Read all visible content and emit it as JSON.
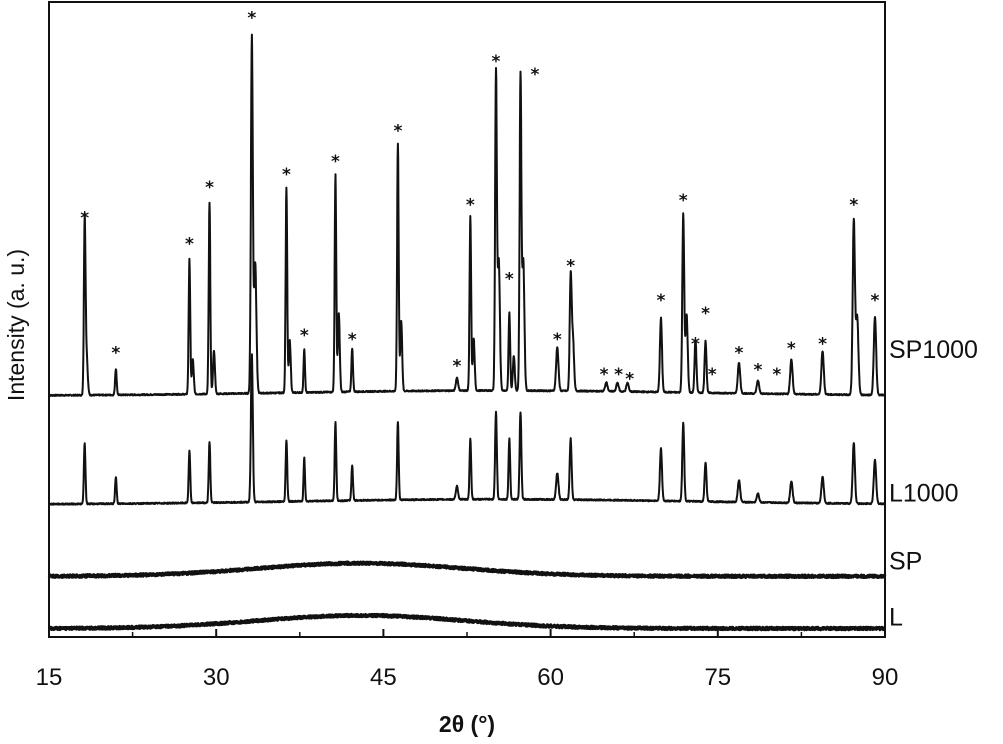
{
  "chart_data": {
    "type": "line",
    "title": "",
    "xlabel": "2θ (°)",
    "ylabel": "Intensity (a. u.)",
    "xlim": [
      15,
      90
    ],
    "xticks": [
      15,
      30,
      45,
      60,
      75,
      90
    ],
    "xtick_labels": [
      "15",
      "30",
      "45",
      "60",
      "75",
      "90"
    ],
    "yticks_shown": false,
    "marker_symbol": "*",
    "series": [
      {
        "name": "SP1000",
        "baseline": 0.55,
        "amorphous_hump": 0,
        "peaks": [
          {
            "x": 18.2,
            "h": 0.38,
            "w": 0.1
          },
          {
            "x": 18.35,
            "h": 0.1,
            "w": 0.15
          },
          {
            "x": 21.0,
            "h": 0.06,
            "w": 0.1
          },
          {
            "x": 27.6,
            "h": 0.31,
            "w": 0.1
          },
          {
            "x": 27.9,
            "h": 0.08,
            "w": 0.12
          },
          {
            "x": 29.4,
            "h": 0.44,
            "w": 0.1
          },
          {
            "x": 29.8,
            "h": 0.1,
            "w": 0.12
          },
          {
            "x": 33.2,
            "h": 0.82,
            "w": 0.12
          },
          {
            "x": 33.5,
            "h": 0.3,
            "w": 0.15
          },
          {
            "x": 36.3,
            "h": 0.47,
            "w": 0.1
          },
          {
            "x": 36.6,
            "h": 0.12,
            "w": 0.12
          },
          {
            "x": 37.9,
            "h": 0.1,
            "w": 0.09
          },
          {
            "x": 40.7,
            "h": 0.5,
            "w": 0.1
          },
          {
            "x": 41.0,
            "h": 0.18,
            "w": 0.12
          },
          {
            "x": 42.2,
            "h": 0.1,
            "w": 0.1
          },
          {
            "x": 46.3,
            "h": 0.57,
            "w": 0.1
          },
          {
            "x": 46.6,
            "h": 0.16,
            "w": 0.12
          },
          {
            "x": 51.6,
            "h": 0.03,
            "w": 0.14
          },
          {
            "x": 52.8,
            "h": 0.4,
            "w": 0.1
          },
          {
            "x": 53.1,
            "h": 0.12,
            "w": 0.12
          },
          {
            "x": 55.1,
            "h": 0.73,
            "w": 0.11
          },
          {
            "x": 55.35,
            "h": 0.3,
            "w": 0.14
          },
          {
            "x": 56.3,
            "h": 0.18,
            "w": 0.1
          },
          {
            "x": 56.7,
            "h": 0.08,
            "w": 0.12
          },
          {
            "x": 57.3,
            "h": 0.72,
            "w": 0.11
          },
          {
            "x": 57.55,
            "h": 0.3,
            "w": 0.14
          },
          {
            "x": 60.6,
            "h": 0.1,
            "w": 0.15
          },
          {
            "x": 61.8,
            "h": 0.26,
            "w": 0.12
          },
          {
            "x": 62.0,
            "h": 0.12,
            "w": 0.14
          },
          {
            "x": 65.0,
            "h": 0.02,
            "w": 0.15
          },
          {
            "x": 66.0,
            "h": 0.02,
            "w": 0.15
          },
          {
            "x": 66.9,
            "h": 0.02,
            "w": 0.15
          },
          {
            "x": 69.9,
            "h": 0.17,
            "w": 0.13
          },
          {
            "x": 71.9,
            "h": 0.41,
            "w": 0.12
          },
          {
            "x": 72.2,
            "h": 0.18,
            "w": 0.14
          },
          {
            "x": 73.0,
            "h": 0.12,
            "w": 0.12
          },
          {
            "x": 73.9,
            "h": 0.12,
            "w": 0.12
          },
          {
            "x": 76.9,
            "h": 0.07,
            "w": 0.15
          },
          {
            "x": 78.6,
            "h": 0.03,
            "w": 0.15
          },
          {
            "x": 81.6,
            "h": 0.08,
            "w": 0.15
          },
          {
            "x": 84.4,
            "h": 0.1,
            "w": 0.15
          },
          {
            "x": 87.2,
            "h": 0.4,
            "w": 0.14
          },
          {
            "x": 87.5,
            "h": 0.18,
            "w": 0.16
          },
          {
            "x": 89.1,
            "h": 0.18,
            "w": 0.15
          }
        ]
      },
      {
        "name": "L1000",
        "baseline": 0.3,
        "amorphous_hump": 0,
        "peaks": [
          {
            "x": 18.2,
            "h": 0.14,
            "w": 0.1
          },
          {
            "x": 21.0,
            "h": 0.06,
            "w": 0.1
          },
          {
            "x": 27.6,
            "h": 0.12,
            "w": 0.1
          },
          {
            "x": 29.4,
            "h": 0.14,
            "w": 0.1
          },
          {
            "x": 33.2,
            "h": 0.34,
            "w": 0.12
          },
          {
            "x": 36.3,
            "h": 0.14,
            "w": 0.1
          },
          {
            "x": 37.9,
            "h": 0.1,
            "w": 0.09
          },
          {
            "x": 40.7,
            "h": 0.18,
            "w": 0.1
          },
          {
            "x": 42.2,
            "h": 0.08,
            "w": 0.1
          },
          {
            "x": 46.3,
            "h": 0.18,
            "w": 0.1
          },
          {
            "x": 51.6,
            "h": 0.03,
            "w": 0.14
          },
          {
            "x": 52.8,
            "h": 0.14,
            "w": 0.1
          },
          {
            "x": 55.1,
            "h": 0.2,
            "w": 0.11
          },
          {
            "x": 56.3,
            "h": 0.14,
            "w": 0.1
          },
          {
            "x": 57.3,
            "h": 0.2,
            "w": 0.11
          },
          {
            "x": 60.6,
            "h": 0.06,
            "w": 0.15
          },
          {
            "x": 61.8,
            "h": 0.14,
            "w": 0.12
          },
          {
            "x": 69.9,
            "h": 0.12,
            "w": 0.13
          },
          {
            "x": 71.9,
            "h": 0.18,
            "w": 0.12
          },
          {
            "x": 73.9,
            "h": 0.09,
            "w": 0.12
          },
          {
            "x": 76.9,
            "h": 0.05,
            "w": 0.15
          },
          {
            "x": 78.6,
            "h": 0.02,
            "w": 0.15
          },
          {
            "x": 81.6,
            "h": 0.05,
            "w": 0.15
          },
          {
            "x": 84.4,
            "h": 0.06,
            "w": 0.15
          },
          {
            "x": 87.2,
            "h": 0.14,
            "w": 0.14
          },
          {
            "x": 89.1,
            "h": 0.1,
            "w": 0.15
          }
        ]
      },
      {
        "name": "SP",
        "baseline": 0.135,
        "amorphous_hump": 0.03,
        "peaks": []
      },
      {
        "name": "L",
        "baseline": 0.015,
        "amorphous_hump": 0.03,
        "peaks": []
      }
    ],
    "star_markers": [
      {
        "x": 18.2,
        "y": 0.96
      },
      {
        "x": 21.0,
        "y": 0.65
      },
      {
        "x": 27.6,
        "y": 0.9
      },
      {
        "x": 29.4,
        "y": 1.03
      },
      {
        "x": 33.2,
        "y": 1.42
      },
      {
        "x": 36.3,
        "y": 1.06
      },
      {
        "x": 37.9,
        "y": 0.69
      },
      {
        "x": 40.7,
        "y": 1.09
      },
      {
        "x": 42.2,
        "y": 0.68
      },
      {
        "x": 46.3,
        "y": 1.16
      },
      {
        "x": 51.6,
        "y": 0.62
      },
      {
        "x": 52.8,
        "y": 0.99
      },
      {
        "x": 55.1,
        "y": 1.32
      },
      {
        "x": 56.3,
        "y": 0.82
      },
      {
        "x": 58.6,
        "y": 1.29
      },
      {
        "x": 60.6,
        "y": 0.68
      },
      {
        "x": 61.8,
        "y": 0.85
      },
      {
        "x": 64.8,
        "y": 0.6
      },
      {
        "x": 66.1,
        "y": 0.6
      },
      {
        "x": 67.1,
        "y": 0.59
      },
      {
        "x": 69.9,
        "y": 0.77
      },
      {
        "x": 71.9,
        "y": 1.0
      },
      {
        "x": 73.0,
        "y": 0.67
      },
      {
        "x": 73.9,
        "y": 0.74
      },
      {
        "x": 74.5,
        "y": 0.6
      },
      {
        "x": 76.9,
        "y": 0.65
      },
      {
        "x": 78.6,
        "y": 0.61
      },
      {
        "x": 80.3,
        "y": 0.6
      },
      {
        "x": 81.6,
        "y": 0.66
      },
      {
        "x": 84.4,
        "y": 0.67
      },
      {
        "x": 87.2,
        "y": 0.99
      },
      {
        "x": 89.1,
        "y": 0.77
      }
    ],
    "grid": false,
    "legend": "none"
  }
}
